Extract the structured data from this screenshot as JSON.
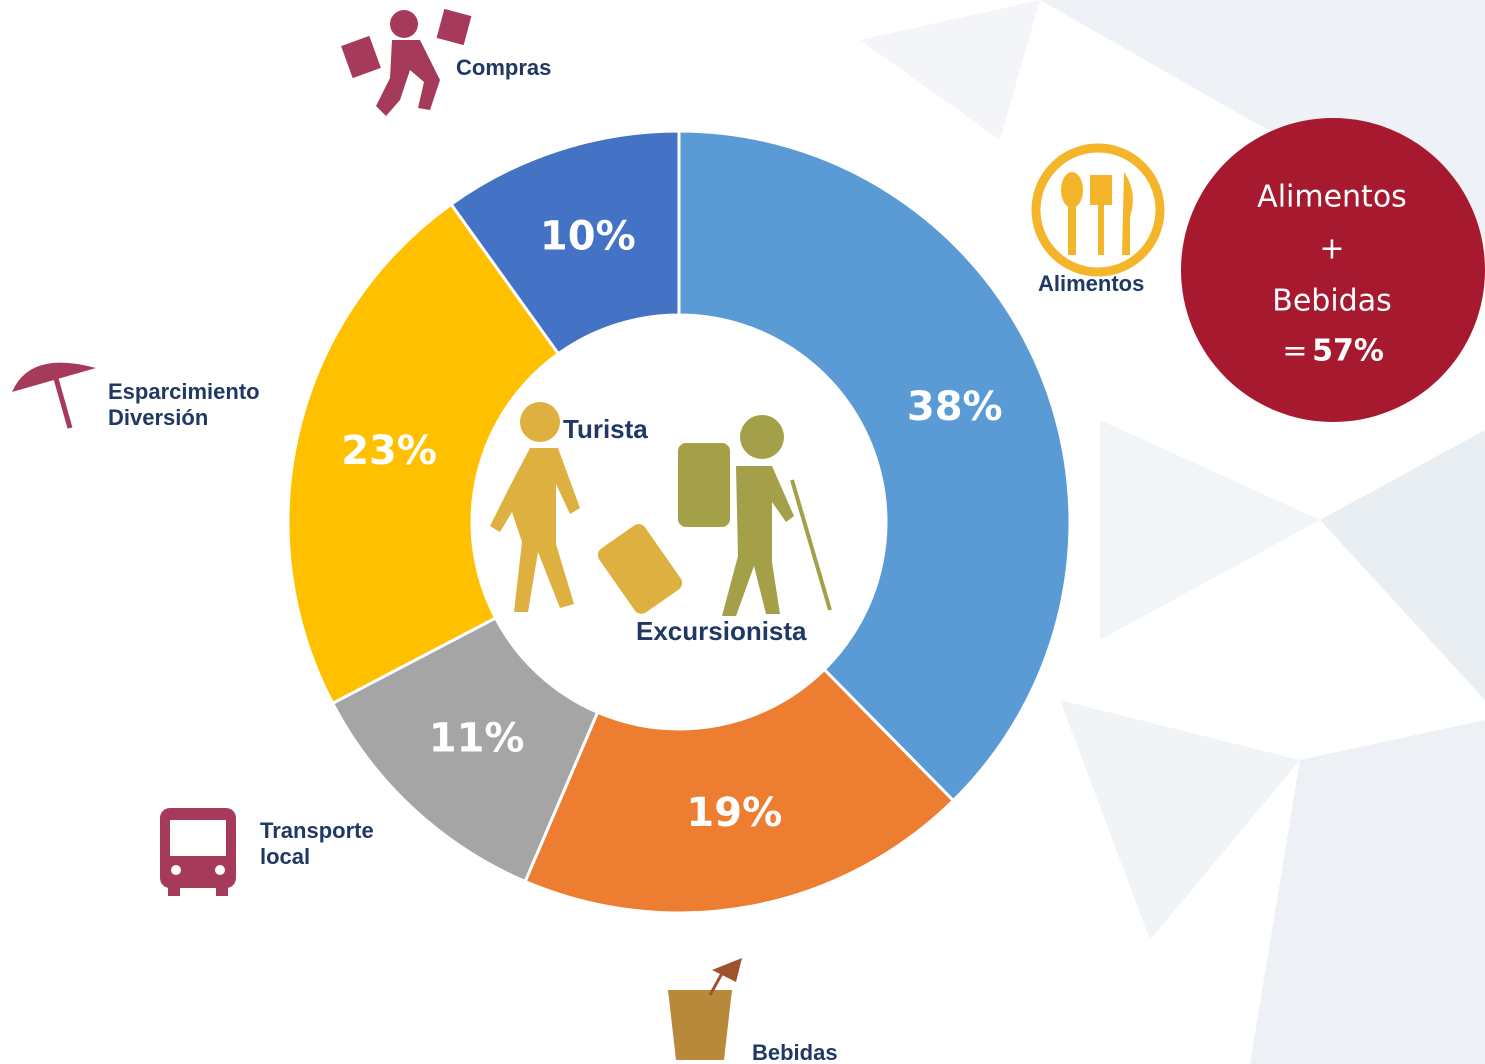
{
  "chart_data": {
    "type": "donut",
    "categories": [
      "Alimentos",
      "Bebidas",
      "Transporte local",
      "Esparcimiento Diversión",
      "Compras"
    ],
    "values": [
      38,
      19,
      11,
      23,
      10
    ],
    "value_labels": [
      "38%",
      "19%",
      "11%",
      "23%",
      "10%"
    ],
    "colors": [
      "#5b9bd5",
      "#ed7d31",
      "#a5a5a5",
      "#ffc000",
      "#4472c4"
    ],
    "center_labels": [
      "Turista",
      "Excursionista"
    ],
    "callout": {
      "lines": [
        "Alimentos",
        "+",
        "Bebidas"
      ],
      "prefix": "=",
      "total": "57%"
    }
  }
}
